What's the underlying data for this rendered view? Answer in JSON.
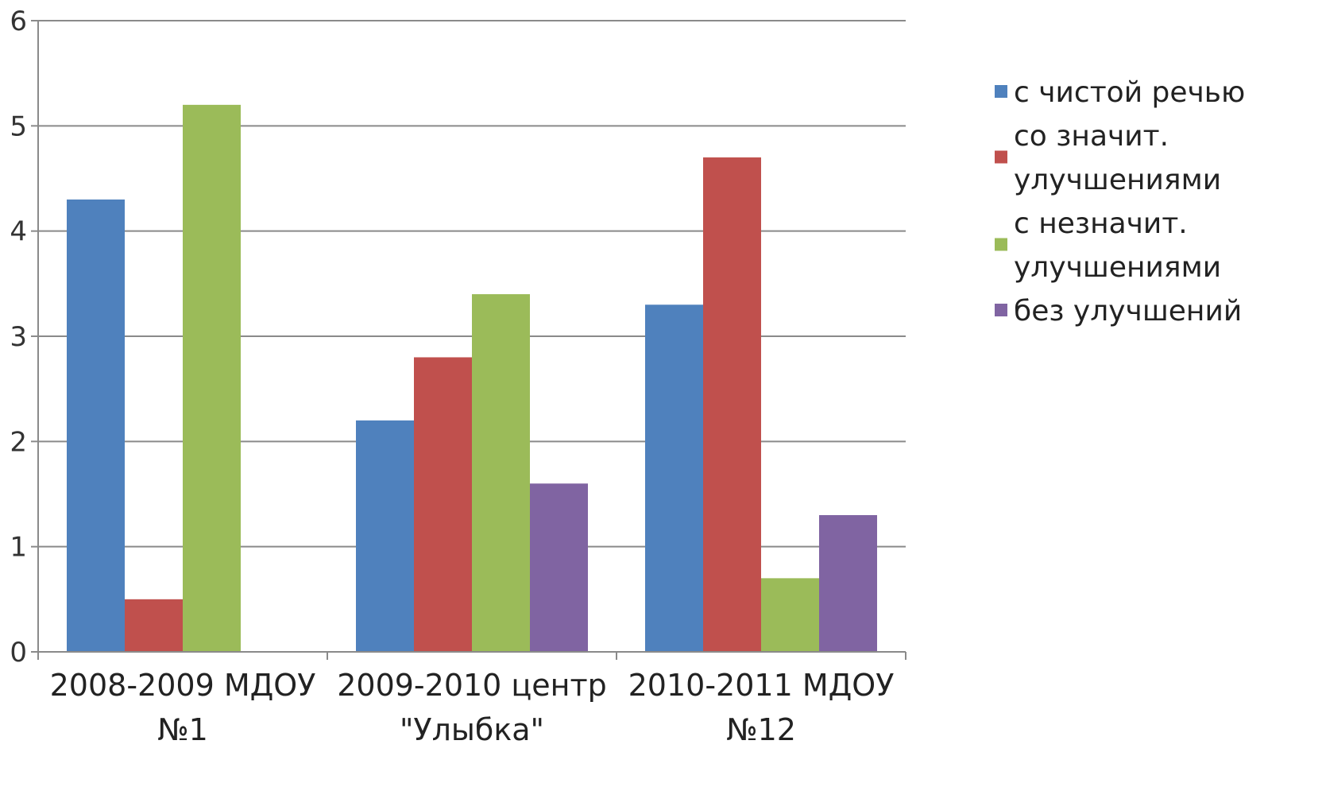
{
  "chart_data": {
    "type": "bar",
    "categories": [
      [
        "2008-2009 МДОУ",
        "№1"
      ],
      [
        "2009-2010 центр",
        "\"Улыбка\""
      ],
      [
        "2010-2011 МДОУ",
        "№12"
      ]
    ],
    "series": [
      {
        "name": "с чистой речью",
        "legend_lines": [
          "с чистой речью"
        ],
        "color": "#4F81BD",
        "values": [
          4.3,
          2.2,
          3.3
        ]
      },
      {
        "name": "со значит. улучшениями",
        "legend_lines": [
          "со значит.",
          "улучшениями"
        ],
        "color": "#C0504D",
        "values": [
          0.5,
          2.8,
          4.7
        ]
      },
      {
        "name": "с незначит. улучшениями",
        "legend_lines": [
          "с незначит.",
          "улучшениями"
        ],
        "color": "#9BBB59",
        "values": [
          5.2,
          3.4,
          0.7
        ]
      },
      {
        "name": "без улучшений",
        "legend_lines": [
          "без улучшений"
        ],
        "color": "#8064A2",
        "values": [
          null,
          1.6,
          1.3
        ]
      }
    ],
    "yticks": [
      "0",
      "1",
      "2",
      "3",
      "4",
      "5",
      "6"
    ],
    "ylim": [
      0,
      6
    ],
    "grid": true,
    "legend_position": "right",
    "title": "",
    "xlabel": "",
    "ylabel": ""
  }
}
